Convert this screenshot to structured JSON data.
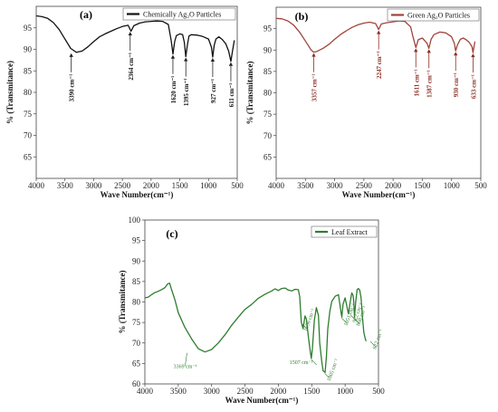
{
  "chart_data": [
    {
      "id": "a",
      "type": "line",
      "panel_label": "(a)",
      "legend_position": "top-right",
      "xlabel": "Wave Number(cm⁻¹)",
      "ylabel": "% (Transmitance)",
      "xlim": [
        4000,
        500
      ],
      "ylim": [
        60,
        100
      ],
      "x_ticks": [
        4000,
        3500,
        3000,
        2500,
        2000,
        1500,
        1000,
        500
      ],
      "y_ticks": [
        65,
        70,
        75,
        80,
        85,
        90,
        95
      ],
      "color": "#111111",
      "series": [
        {
          "name": "Chemically Ag₂O Particles",
          "x": [
            4000,
            3900,
            3800,
            3700,
            3600,
            3500,
            3400,
            3300,
            3200,
            3100,
            3000,
            2900,
            2800,
            2700,
            2600,
            2500,
            2400,
            2350,
            2300,
            2200,
            2100,
            2000,
            1900,
            1800,
            1700,
            1650,
            1620,
            1590,
            1560,
            1500,
            1450,
            1420,
            1395,
            1370,
            1340,
            1300,
            1200,
            1100,
            1000,
            950,
            927,
            900,
            870,
            820,
            760,
            700,
            650,
            611,
            580,
            550
          ],
          "y": [
            97.8,
            97.6,
            97.2,
            96.2,
            94.6,
            92.4,
            90.2,
            89.3,
            89.6,
            90.6,
            91.8,
            92.9,
            93.6,
            94.2,
            94.8,
            95.3,
            95.6,
            94.2,
            95.5,
            96.1,
            96.4,
            96.5,
            96.6,
            96.5,
            95.8,
            92.0,
            88.9,
            91.8,
            93.2,
            93.6,
            93.4,
            91.6,
            88.3,
            90.8,
            93.1,
            93.4,
            93.3,
            93.0,
            92.4,
            90.5,
            88.2,
            91.0,
            92.4,
            92.9,
            92.3,
            91.3,
            89.6,
            87.2,
            89.8,
            92.1
          ]
        }
      ],
      "annotations": [
        {
          "text": "3390 cm⁻¹",
          "x": 3390,
          "y": 89.3
        },
        {
          "text": "2364 cm⁻¹",
          "x": 2364,
          "y": 94.3
        },
        {
          "text": "1620 cm⁻¹",
          "x": 1620,
          "y": 88.9
        },
        {
          "text": "1395 cm⁻¹",
          "x": 1395,
          "y": 88.3
        },
        {
          "text": "927 cm⁻¹",
          "x": 927,
          "y": 88.2
        },
        {
          "text": "611 cm⁻¹",
          "x": 611,
          "y": 87.2
        }
      ]
    },
    {
      "id": "b",
      "type": "line",
      "panel_label": "(b)",
      "legend_position": "top-right",
      "xlabel": "Wave Number(cm⁻¹)",
      "ylabel": "% (Transmitance)",
      "xlim": [
        4000,
        500
      ],
      "ylim": [
        60,
        100
      ],
      "x_ticks": [
        4000,
        3500,
        3000,
        2500,
        2000,
        1500,
        1000,
        500
      ],
      "y_ticks": [
        65,
        70,
        75,
        80,
        85,
        90,
        95
      ],
      "color": "#a0443a",
      "series": [
        {
          "name": "Green Ag₂O Particles",
          "x": [
            4000,
            3900,
            3800,
            3700,
            3600,
            3500,
            3400,
            3357,
            3300,
            3200,
            3100,
            3000,
            2900,
            2800,
            2700,
            2600,
            2500,
            2400,
            2300,
            2247,
            2200,
            2100,
            2000,
            1900,
            1800,
            1700,
            1660,
            1611,
            1570,
            1500,
            1420,
            1387,
            1350,
            1300,
            1200,
            1100,
            1000,
            950,
            930,
            900,
            850,
            800,
            750,
            700,
            650,
            633,
            600
          ],
          "y": [
            97.4,
            97.3,
            96.8,
            95.8,
            94.2,
            92.1,
            90.0,
            89.5,
            89.7,
            90.4,
            91.3,
            92.5,
            93.6,
            94.5,
            95.3,
            95.9,
            96.3,
            96.5,
            96.2,
            94.8,
            96.1,
            96.4,
            96.6,
            96.8,
            96.7,
            95.4,
            93.1,
            90.6,
            92.4,
            92.8,
            91.6,
            90.4,
            92.5,
            93.6,
            94.2,
            94.0,
            93.1,
            91.5,
            89.8,
            91.2,
            92.5,
            92.8,
            92.4,
            91.8,
            90.8,
            89.4,
            92.0
          ]
        }
      ],
      "annotations": [
        {
          "text": "3357 cm⁻¹",
          "x": 3357,
          "y": 89.5
        },
        {
          "text": "2247 cm⁻¹",
          "x": 2247,
          "y": 94.8
        },
        {
          "text": "1611 cm⁻¹",
          "x": 1611,
          "y": 90.6
        },
        {
          "text": "1387 cm⁻¹",
          "x": 1387,
          "y": 90.4
        },
        {
          "text": "930 cm⁻¹",
          "x": 930,
          "y": 89.8
        },
        {
          "text": "633 cm⁻¹",
          "x": 633,
          "y": 89.4
        }
      ]
    },
    {
      "id": "c",
      "type": "line",
      "panel_label": "(c)",
      "legend_position": "top-right",
      "xlabel": "Wave Number(cm⁻¹)",
      "ylabel": "% (Transmitance)",
      "xlim": [
        4000,
        500
      ],
      "ylim": [
        60,
        100
      ],
      "x_ticks": [
        4000,
        3500,
        3000,
        2500,
        2000,
        1500,
        1000,
        500
      ],
      "y_ticks": [
        60,
        65,
        70,
        75,
        80,
        85,
        90,
        95,
        100
      ],
      "color": "#2e7d2e",
      "series": [
        {
          "name": "Leaf Extract",
          "x": [
            4000,
            3950,
            3900,
            3850,
            3800,
            3750,
            3700,
            3660,
            3630,
            3600,
            3550,
            3500,
            3400,
            3300,
            3200,
            3100,
            3000,
            2900,
            2800,
            2700,
            2600,
            2500,
            2400,
            2300,
            2200,
            2100,
            2050,
            2000,
            1950,
            1900,
            1850,
            1800,
            1750,
            1700,
            1680,
            1656,
            1630,
            1600,
            1580,
            1550,
            1520,
            1507,
            1490,
            1460,
            1430,
            1400,
            1380,
            1350,
            1330,
            1300,
            1280,
            1260,
            1230,
            1200,
            1150,
            1100,
            1070,
            1050,
            1030,
            1000,
            980,
            950,
            920,
            900,
            880,
            870,
            860,
            840,
            820,
            800,
            780,
            760,
            740,
            720,
            700,
            690,
            680
          ],
          "y": [
            81.0,
            81.2,
            81.8,
            82.3,
            82.6,
            83.0,
            83.5,
            84.4,
            84.6,
            83.0,
            80.5,
            77.4,
            73.8,
            71.0,
            68.6,
            67.8,
            68.4,
            70.0,
            72.0,
            74.3,
            76.3,
            78.2,
            79.4,
            80.9,
            81.9,
            82.7,
            83.2,
            82.8,
            83.3,
            83.4,
            82.9,
            82.7,
            83.1,
            83.0,
            81.3,
            75.0,
            73.5,
            76.6,
            75.8,
            71.5,
            67.7,
            66.2,
            68.6,
            75.6,
            78.6,
            76.7,
            70.0,
            65.6,
            63.2,
            62.8,
            66.6,
            73.4,
            77.6,
            80.1,
            81.4,
            81.8,
            78.4,
            76.3,
            79.5,
            81.0,
            79.5,
            77.1,
            80.3,
            82.2,
            81.6,
            80.0,
            76.3,
            80.1,
            83.0,
            83.3,
            82.8,
            80.9,
            76.3,
            72.6,
            71.1,
            70.6,
            70.5
          ]
        }
      ],
      "annotations": [
        {
          "text": "3369 cm⁻¹",
          "x": 3369,
          "y": 67.8
        },
        {
          "text": "1656 cm⁻¹",
          "x": 1656,
          "y": 75.0
        },
        {
          "text": "1507 cm⁻¹",
          "x": 1507,
          "y": 66.2
        },
        {
          "text": "1305 cm⁻¹",
          "x": 1305,
          "y": 62.8
        },
        {
          "text": "1051 cm⁻¹",
          "x": 1051,
          "y": 76.3
        },
        {
          "text": "922 cm⁻¹",
          "x": 922,
          "y": 77.1
        },
        {
          "text": "868 cm⁻¹",
          "x": 868,
          "y": 76.3
        },
        {
          "text": "622 cm⁻¹",
          "x": 622,
          "y": 70.6
        }
      ]
    }
  ]
}
